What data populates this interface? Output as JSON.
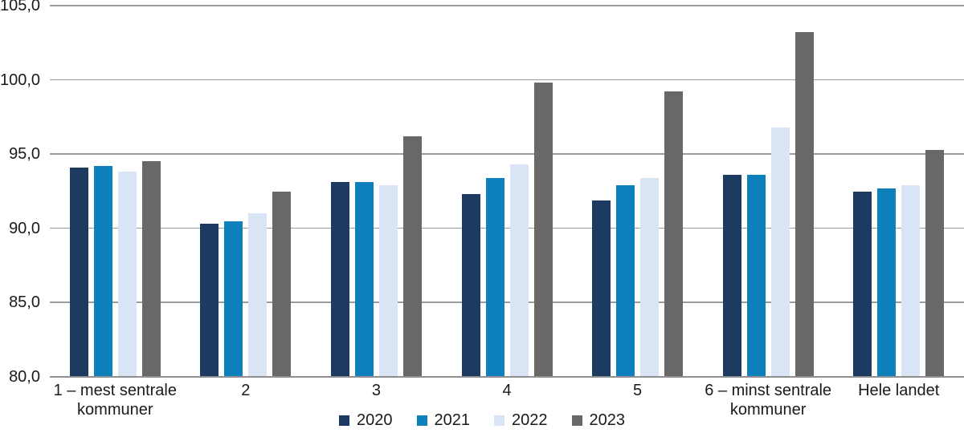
{
  "chart_data": {
    "type": "bar",
    "title": "",
    "xlabel": "",
    "ylabel": "",
    "categories": [
      "1 – mest sentrale kommuner",
      "2",
      "3",
      "4",
      "5",
      "6 – minst sentrale kommuner",
      "Hele landet"
    ],
    "series": [
      {
        "name": "2020",
        "color": "#1d3a60",
        "values": [
          94.1,
          90.3,
          93.1,
          92.3,
          91.9,
          93.6,
          92.5
        ]
      },
      {
        "name": "2021",
        "color": "#0e81bd",
        "values": [
          94.2,
          90.5,
          93.1,
          93.4,
          92.9,
          93.6,
          92.7
        ]
      },
      {
        "name": "2022",
        "color": "#d9e5f4",
        "values": [
          93.8,
          91.0,
          92.9,
          94.3,
          93.4,
          96.8,
          92.9
        ]
      },
      {
        "name": "2023",
        "color": "#686867",
        "values": [
          94.5,
          92.5,
          96.2,
          99.8,
          99.2,
          103.2,
          95.3
        ]
      }
    ],
    "ylim": [
      80,
      105
    ],
    "yticks": [
      80,
      85,
      90,
      95,
      100,
      105
    ],
    "ytick_labels": [
      "80,0",
      "85,0",
      "90,0",
      "95,0",
      "100,0",
      "105,0"
    ],
    "decimal_separator": ",",
    "grid": "horizontal",
    "gridline_color": "#9a9a9a",
    "axis_line_color": "#8f8f8f",
    "text_color": "#1a1a1a",
    "background_color": "#ffffff",
    "legend_position": "bottom-center"
  }
}
